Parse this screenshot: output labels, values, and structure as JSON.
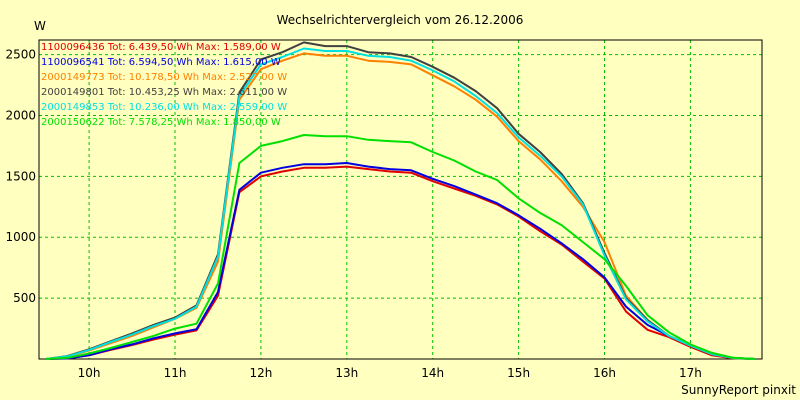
{
  "chart_data": {
    "type": "line",
    "title": "Wechselrichtervergleich vom 26.12.2006",
    "ylabel": "W",
    "xlabel": "",
    "footer": "SunnyReport pinxit",
    "x_ticks": [
      "10h",
      "11h",
      "12h",
      "13h",
      "14h",
      "15h",
      "16h",
      "17h"
    ],
    "xlim": [
      "09:25",
      "17:50"
    ],
    "y_ticks": [
      500,
      1000,
      1500,
      2000,
      2500
    ],
    "ylim": [
      0,
      2620
    ],
    "grid": true,
    "background": "#ffffc0",
    "grid_color": "#00c000",
    "legend_placement": "top-left",
    "x": [
      "09:30",
      "09:45",
      "10:00",
      "10:15",
      "10:30",
      "10:45",
      "11:00",
      "11:15",
      "11:30",
      "11:45",
      "12:00",
      "12:15",
      "12:30",
      "12:45",
      "13:00",
      "13:15",
      "13:30",
      "13:45",
      "14:00",
      "14:15",
      "14:30",
      "14:45",
      "15:00",
      "15:15",
      "15:30",
      "15:45",
      "16:00",
      "16:15",
      "16:30",
      "16:45",
      "17:00",
      "17:15",
      "17:30",
      "17:45"
    ],
    "series": [
      {
        "name": "1100096436",
        "legend": "1100096436 Tot: 6.439,50 Wh Max: 1.589,00 W",
        "color": "#e00000",
        "values": [
          0,
          5,
          30,
          75,
          115,
          160,
          200,
          235,
          520,
          1370,
          1500,
          1540,
          1570,
          1570,
          1580,
          1560,
          1540,
          1530,
          1460,
          1400,
          1340,
          1270,
          1170,
          1050,
          940,
          800,
          660,
          390,
          240,
          180,
          100,
          30,
          5,
          0
        ]
      },
      {
        "name": "1100096541",
        "legend": "1100096541 Tot: 6.594,50 Wh Max: 1.615,00 W",
        "color": "#0000e0",
        "values": [
          0,
          5,
          30,
          80,
          120,
          170,
          210,
          245,
          550,
          1390,
          1530,
          1570,
          1600,
          1600,
          1610,
          1580,
          1560,
          1550,
          1480,
          1420,
          1350,
          1280,
          1180,
          1070,
          950,
          820,
          670,
          430,
          280,
          190,
          110,
          40,
          8,
          0
        ]
      },
      {
        "name": "2000149773",
        "legend": "2000149773 Tot: 10.178,50 Wh Max: 2.527,00 W",
        "color": "#ff8000",
        "values": [
          0,
          20,
          70,
          130,
          190,
          260,
          330,
          420,
          800,
          2130,
          2380,
          2450,
          2510,
          2490,
          2490,
          2450,
          2440,
          2420,
          2330,
          2240,
          2130,
          1990,
          1790,
          1640,
          1460,
          1250,
          960,
          520,
          320,
          190,
          110,
          40,
          8,
          0
        ]
      },
      {
        "name": "2000149801",
        "legend": "2000149801 Tot: 10.453,25 Wh Max: 2.611,00 W",
        "color": "#404040",
        "values": [
          0,
          25,
          80,
          145,
          210,
          280,
          340,
          440,
          860,
          2190,
          2460,
          2520,
          2600,
          2570,
          2570,
          2520,
          2510,
          2480,
          2400,
          2310,
          2200,
          2060,
          1850,
          1700,
          1520,
          1280,
          870,
          500,
          320,
          190,
          110,
          40,
          8,
          0
        ]
      },
      {
        "name": "2000149853",
        "legend": "2000149853 Tot: 10.236,00 Wh Max: 2.559,00 W",
        "color": "#00e0e0",
        "values": [
          0,
          22,
          75,
          140,
          200,
          270,
          330,
          430,
          840,
          2160,
          2420,
          2480,
          2550,
          2530,
          2530,
          2490,
          2480,
          2450,
          2370,
          2280,
          2160,
          2020,
          1820,
          1670,
          1500,
          1270,
          850,
          490,
          310,
          190,
          110,
          40,
          8,
          0
        ]
      },
      {
        "name": "2000150622",
        "legend": "2000150622 Tot: 7.578,25 Wh Max: 1.850,00 W",
        "color": "#00e000",
        "values": [
          0,
          10,
          45,
          90,
          140,
          190,
          250,
          290,
          620,
          1610,
          1750,
          1790,
          1840,
          1830,
          1830,
          1800,
          1790,
          1780,
          1700,
          1630,
          1540,
          1470,
          1320,
          1200,
          1100,
          960,
          820,
          600,
          360,
          220,
          120,
          50,
          10,
          0
        ]
      }
    ]
  }
}
